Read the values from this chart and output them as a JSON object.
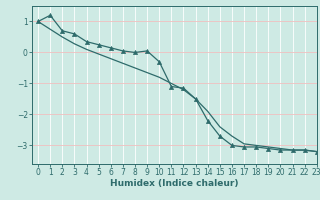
{
  "xlabel": "Humidex (Indice chaleur)",
  "ylabel": "",
  "bg_color": "#ceeae4",
  "grid_color_major": "#f0c0c0",
  "grid_color_minor": "#ffffff",
  "line_color": "#2e6b6b",
  "spine_color": "#2e6b6b",
  "xlim": [
    -0.5,
    23
  ],
  "ylim": [
    -3.6,
    1.5
  ],
  "yticks": [
    -3,
    -2,
    -1,
    0,
    1
  ],
  "xticks": [
    0,
    1,
    2,
    3,
    4,
    5,
    6,
    7,
    8,
    9,
    10,
    11,
    12,
    13,
    14,
    15,
    16,
    17,
    18,
    19,
    20,
    21,
    22,
    23
  ],
  "series1_x": [
    0,
    1,
    2,
    3,
    4,
    5,
    6,
    7,
    8,
    9,
    10,
    11,
    12,
    13,
    14,
    15,
    16,
    17,
    18,
    19,
    20,
    21,
    22,
    23
  ],
  "series1_y": [
    1.0,
    1.2,
    0.7,
    0.6,
    0.35,
    0.25,
    0.15,
    0.05,
    0.0,
    0.05,
    -0.3,
    -1.1,
    -1.15,
    -1.5,
    -2.2,
    -2.7,
    -3.0,
    -3.05,
    -3.05,
    -3.1,
    -3.15,
    -3.15,
    -3.15,
    -3.2
  ],
  "series2_x": [
    0,
    1,
    2,
    3,
    4,
    5,
    6,
    7,
    8,
    9,
    10,
    11,
    12,
    13,
    14,
    15,
    16,
    17,
    18,
    19,
    20,
    21,
    22,
    23
  ],
  "series2_y": [
    1.0,
    0.75,
    0.5,
    0.28,
    0.1,
    -0.05,
    -0.2,
    -0.35,
    -0.5,
    -0.65,
    -0.8,
    -1.0,
    -1.2,
    -1.5,
    -1.9,
    -2.4,
    -2.7,
    -2.95,
    -3.0,
    -3.05,
    -3.1,
    -3.15,
    -3.15,
    -3.2
  ],
  "marker": "^",
  "markersize": 3.0,
  "linewidth": 0.9,
  "tick_labelsize": 5.5,
  "xlabel_fontsize": 6.5,
  "xlabel_fontweight": "bold"
}
